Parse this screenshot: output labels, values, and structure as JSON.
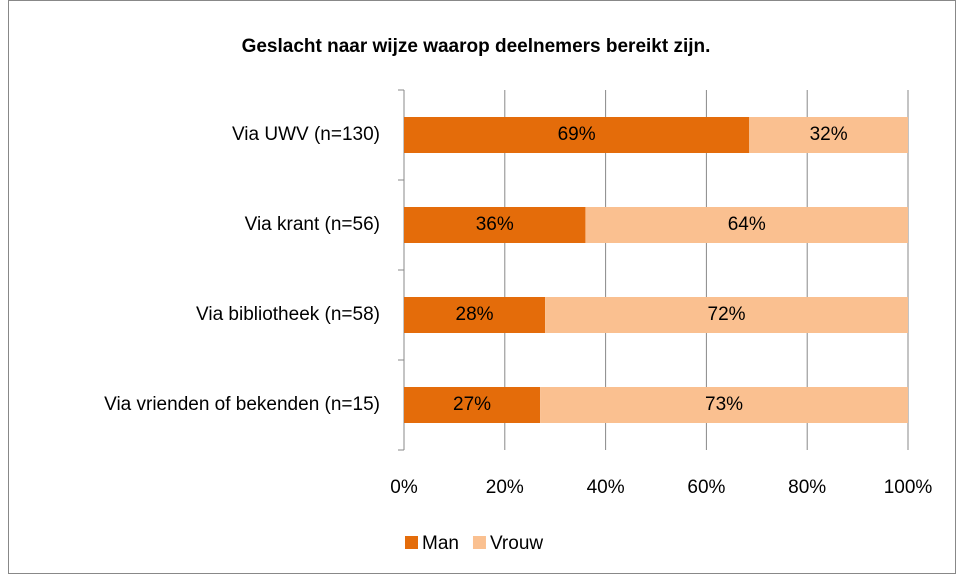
{
  "chart_data": {
    "type": "stacked-bar-horizontal",
    "title": "Geslacht naar wijze waarop deelnemers bereikt zijn.",
    "categories": [
      "Via UWV (n=130)",
      "Via krant (n=56)",
      "Via bibliotheek (n=58)",
      "Via vrienden of bekenden (n=15)"
    ],
    "series": [
      {
        "name": "Man",
        "color": "#e46c0a",
        "values": [
          68.5,
          36,
          28,
          27
        ],
        "value_labels": [
          "69%",
          "36%",
          "28%",
          "27%"
        ]
      },
      {
        "name": "Vrouw",
        "color": "#fac090",
        "values": [
          31.5,
          64,
          72,
          73
        ],
        "value_labels": [
          "32%",
          "64%",
          "72%",
          "73%"
        ]
      }
    ],
    "xlim": [
      0,
      100
    ],
    "xticks": [
      {
        "value": 0,
        "label": "0%"
      },
      {
        "value": 20,
        "label": "20%"
      },
      {
        "value": 40,
        "label": "40%"
      },
      {
        "value": 60,
        "label": "60%"
      },
      {
        "value": 80,
        "label": "80%"
      },
      {
        "value": 100,
        "label": "100%"
      }
    ],
    "grid": true,
    "legend": "bottom"
  }
}
